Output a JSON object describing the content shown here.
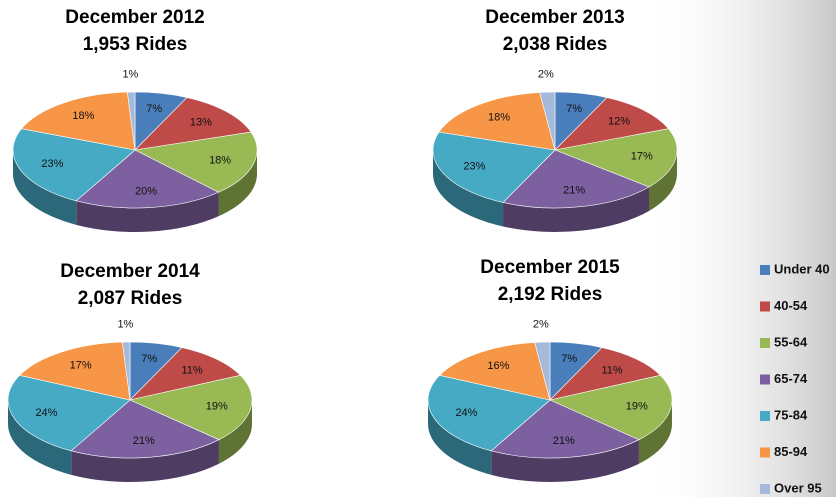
{
  "chart_data": [
    {
      "type": "pie",
      "title": "December 2012",
      "subtitle": "1,953 Rides",
      "categories": [
        "Under 40",
        "40-54",
        "55-64",
        "65-74",
        "75-84",
        "85-94",
        "Over 95"
      ],
      "values": [
        7,
        13,
        18,
        20,
        23,
        18,
        1
      ],
      "value_labels": [
        "7%",
        "13%",
        "18%",
        "20%",
        "23%",
        "18%",
        "1%"
      ],
      "colors": [
        "#4a7ebb",
        "#be4b48",
        "#98b954",
        "#7d60a0",
        "#46aac5",
        "#f79646",
        "#a5b9db"
      ]
    },
    {
      "type": "pie",
      "title": "December 2013",
      "subtitle": "2,038 Rides",
      "categories": [
        "Under 40",
        "40-54",
        "55-64",
        "65-74",
        "75-84",
        "85-94",
        "Over 95"
      ],
      "values": [
        7,
        12,
        17,
        21,
        23,
        18,
        2
      ],
      "value_labels": [
        "7%",
        "12%",
        "17%",
        "21%",
        "23%",
        "18%",
        "2%"
      ],
      "colors": [
        "#4a7ebb",
        "#be4b48",
        "#98b954",
        "#7d60a0",
        "#46aac5",
        "#f79646",
        "#a5b9db"
      ]
    },
    {
      "type": "pie",
      "title": "December 2014",
      "subtitle": "2,087 Rides",
      "categories": [
        "Under 40",
        "40-54",
        "55-64",
        "65-74",
        "75-84",
        "85-94",
        "Over 95"
      ],
      "values": [
        7,
        11,
        19,
        21,
        24,
        17,
        1
      ],
      "value_labels": [
        "7%",
        "11%",
        "19%",
        "21%",
        "24%",
        "17%",
        "1%"
      ],
      "colors": [
        "#4a7ebb",
        "#be4b48",
        "#98b954",
        "#7d60a0",
        "#46aac5",
        "#f79646",
        "#a5b9db"
      ]
    },
    {
      "type": "pie",
      "title": "December 2015",
      "subtitle": "2,192 Rides",
      "categories": [
        "Under 40",
        "40-54",
        "55-64",
        "65-74",
        "75-84",
        "85-94",
        "Over 95"
      ],
      "values": [
        7,
        11,
        19,
        21,
        24,
        16,
        2
      ],
      "value_labels": [
        "7%",
        "11%",
        "19%",
        "21%",
        "24%",
        "16%",
        "2%"
      ],
      "colors": [
        "#4a7ebb",
        "#be4b48",
        "#98b954",
        "#7d60a0",
        "#46aac5",
        "#f79646",
        "#a5b9db"
      ]
    }
  ]
}
